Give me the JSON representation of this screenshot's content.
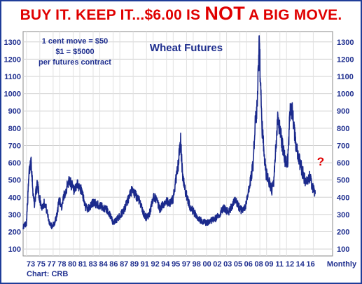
{
  "headline": {
    "part1": "BUY IT. KEEP IT...$6.00 IS ",
    "emphasis": "NOT",
    "part2": " A BIG MOVE."
  },
  "credit": "Chart: CRB",
  "colors": {
    "headline": "#e00000",
    "frame": "#1f3d99",
    "series": "#1b2a8c",
    "text": "#1f2f8f",
    "grid": "#c9c9c9",
    "question_mark": "#e00000"
  },
  "chart_data": {
    "type": "line",
    "title": "Wheat Futures",
    "annotation_lines": [
      "1 cent move = $50",
      "$1 = $5000",
      "per futures contract"
    ],
    "question_mark": "?",
    "xlabel": "Monthly",
    "ylabel": "",
    "ylim": [
      60,
      1360
    ],
    "yticks": [
      100,
      200,
      300,
      400,
      500,
      600,
      700,
      800,
      900,
      1000,
      1100,
      1200,
      1300
    ],
    "xlim": [
      1972.5,
      2018.9
    ],
    "xticks": [
      {
        "label": "73",
        "x": 1973
      },
      {
        "label": "75",
        "x": 1975
      },
      {
        "label": "77",
        "x": 1977
      },
      {
        "label": "78",
        "x": 1978
      },
      {
        "label": "80",
        "x": 1980
      },
      {
        "label": "81",
        "x": 1981
      },
      {
        "label": "83",
        "x": 1983
      },
      {
        "label": "84",
        "x": 1984
      },
      {
        "label": "86",
        "x": 1986
      },
      {
        "label": "87",
        "x": 1987
      },
      {
        "label": "89",
        "x": 1989
      },
      {
        "label": "91",
        "x": 1991
      },
      {
        "label": "92",
        "x": 1992
      },
      {
        "label": "94",
        "x": 1994
      },
      {
        "label": "95",
        "x": 1995
      },
      {
        "label": "97",
        "x": 1997
      },
      {
        "label": "98",
        "x": 1998
      },
      {
        "label": "00",
        "x": 2000
      },
      {
        "label": "02",
        "x": 2002
      },
      {
        "label": "03",
        "x": 2003
      },
      {
        "label": "05",
        "x": 2005
      },
      {
        "label": "06",
        "x": 2006
      },
      {
        "label": "08",
        "x": 2008
      },
      {
        "label": "09",
        "x": 2009
      },
      {
        "label": "11",
        "x": 2011
      },
      {
        "label": "12",
        "x": 2012
      },
      {
        "label": "14",
        "x": 2014
      },
      {
        "label": "16",
        "x": 2016
      }
    ],
    "grid": true,
    "series": [
      {
        "name": "",
        "x": [
          1972.5,
          1973.0,
          1973.4,
          1973.7,
          1974.0,
          1974.2,
          1974.6,
          1975.0,
          1975.3,
          1975.7,
          1976.0,
          1976.4,
          1976.8,
          1977.2,
          1977.6,
          1977.9,
          1978.3,
          1978.7,
          1979.0,
          1979.4,
          1979.8,
          1980.2,
          1980.6,
          1981.0,
          1981.4,
          1981.8,
          1982.2,
          1982.6,
          1983.0,
          1983.5,
          1984.0,
          1984.5,
          1985.0,
          1985.5,
          1986.0,
          1986.5,
          1987.0,
          1987.5,
          1988.0,
          1988.4,
          1988.8,
          1989.2,
          1989.6,
          1990.0,
          1990.5,
          1991.0,
          1991.4,
          1991.8,
          1992.2,
          1992.6,
          1993.0,
          1993.5,
          1994.0,
          1994.5,
          1995.0,
          1995.4,
          1995.8,
          1996.1,
          1996.4,
          1996.8,
          1997.2,
          1997.6,
          1998.0,
          1998.5,
          1999.0,
          1999.5,
          2000.0,
          2000.5,
          2001.0,
          2001.5,
          2002.0,
          2002.5,
          2002.9,
          2003.3,
          2003.8,
          2004.3,
          2004.8,
          2005.3,
          2005.8,
          2006.2,
          2006.6,
          2007.0,
          2007.3,
          2007.6,
          2007.9,
          2008.1,
          2008.3,
          2008.6,
          2008.9,
          2009.2,
          2009.5,
          2009.8,
          2010.1,
          2010.4,
          2010.7,
          2011.0,
          2011.3,
          2011.6,
          2011.9,
          2012.2,
          2012.5,
          2012.8,
          2013.1,
          2013.4,
          2013.7,
          2014.0,
          2014.3,
          2014.6,
          2014.9,
          2015.2,
          2015.5,
          2015.8,
          2016.1,
          2016.3
        ],
        "values": [
          230,
          250,
          540,
          620,
          420,
          360,
          480,
          390,
          340,
          370,
          330,
          260,
          230,
          250,
          300,
          390,
          340,
          420,
          450,
          500,
          470,
          430,
          470,
          460,
          420,
          350,
          330,
          350,
          370,
          360,
          350,
          340,
          330,
          300,
          250,
          270,
          290,
          320,
          360,
          400,
          440,
          420,
          400,
          380,
          310,
          280,
          300,
          360,
          410,
          370,
          330,
          360,
          380,
          360,
          390,
          500,
          600,
          740,
          530,
          440,
          380,
          340,
          320,
          290,
          270,
          260,
          250,
          260,
          270,
          280,
          300,
          340,
          330,
          310,
          350,
          380,
          350,
          320,
          340,
          410,
          500,
          600,
          840,
          920,
          1300,
          1050,
          820,
          680,
          540,
          520,
          470,
          440,
          500,
          700,
          850,
          780,
          720,
          650,
          600,
          620,
          880,
          920,
          800,
          700,
          640,
          600,
          560,
          520,
          480,
          500,
          520,
          460,
          440,
          420
        ]
      }
    ]
  }
}
